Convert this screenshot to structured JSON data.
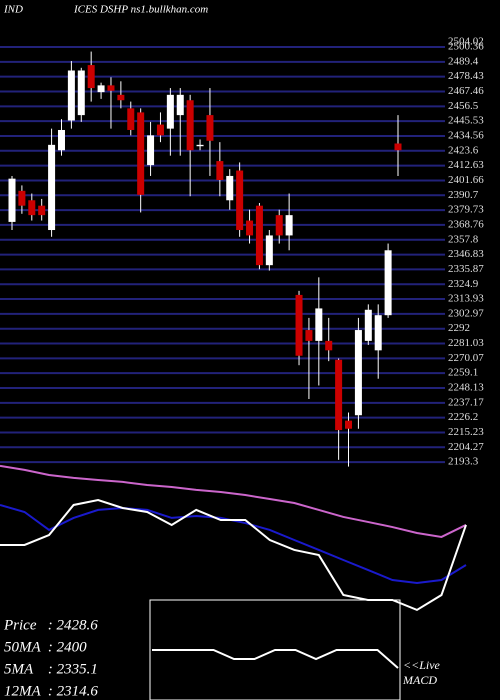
{
  "header": {
    "left": "IND",
    "right": "ICES DSHP ns1.bullkhan.com"
  },
  "chart_data": [
    {
      "type": "candlestick",
      "open": [
        2371,
        2394,
        2387,
        2383,
        2365,
        2424,
        2446,
        2450,
        2487,
        2467,
        2472,
        2465,
        2455,
        2452,
        2413,
        2443,
        2440,
        2450,
        2461,
        2427,
        2450,
        2416,
        2387,
        2409,
        2372,
        2383,
        2339,
        2376,
        2361,
        2317,
        2291,
        2283,
        2283,
        2269,
        2224,
        2228,
        2283,
        2276,
        2302,
        2429
      ],
      "high": [
        2405,
        2398,
        2392,
        2388,
        2440,
        2447,
        2490,
        2485,
        2497,
        2474,
        2478,
        2475,
        2460,
        2455,
        2445,
        2452,
        2470,
        2470,
        2465,
        2432,
        2470,
        2430,
        2410,
        2415,
        2380,
        2385,
        2365,
        2380,
        2392,
        2320,
        2300,
        2330,
        2300,
        2270,
        2230,
        2300,
        2310,
        2310,
        2355,
        2450
      ],
      "low": [
        2365,
        2377,
        2372,
        2372,
        2360,
        2420,
        2440,
        2445,
        2460,
        2462,
        2440,
        2455,
        2435,
        2378,
        2405,
        2430,
        2420,
        2420,
        2390,
        2424,
        2405,
        2390,
        2380,
        2360,
        2355,
        2336,
        2335,
        2355,
        2350,
        2265,
        2240,
        2250,
        2268,
        2195,
        2190,
        2218,
        2280,
        2255,
        2300,
        2405
      ],
      "close": [
        2403,
        2383,
        2376,
        2376,
        2428,
        2439,
        2483,
        2483,
        2470,
        2472,
        2468,
        2461,
        2439,
        2391,
        2435,
        2435,
        2465,
        2465,
        2424,
        2428,
        2431,
        2402,
        2405,
        2365,
        2361,
        2339,
        2361,
        2361,
        2376,
        2272,
        2283,
        2307,
        2276,
        2217,
        2218,
        2291,
        2306,
        2302,
        2350,
        2424
      ],
      "up_color": "#ffffff",
      "down_color": "#cc0000",
      "grid_color": "#22227a",
      "ylim": [
        2186,
        2510
      ],
      "yticks": [
        2193.3,
        2204.27,
        2215.23,
        2226.2,
        2237.17,
        2248.13,
        2259.1,
        2270.07,
        2281.03,
        2292,
        2302.97,
        2313.93,
        2324.9,
        2335.87,
        2346.83,
        2357.8,
        2368.76,
        2379.73,
        2390.7,
        2401.66,
        2412.63,
        2423.6,
        2434.56,
        2445.53,
        2456.5,
        2467.46,
        2478.43,
        2489.4,
        2500.36
      ],
      "max_tick": 2504.02,
      "grid": true
    },
    {
      "type": "line",
      "ylim": [
        0,
        100
      ],
      "series": [
        {
          "color": "#cc66cc",
          "values": [
            96.3,
            93.8,
            90.6,
            88.8,
            87.5,
            86.3,
            84.4,
            83.1,
            81.3,
            80,
            78.1,
            75.6,
            73.1,
            68.8,
            64.4,
            61.3,
            58.1,
            54.4,
            51.9,
            59.4
          ]
        },
        {
          "color": "#1a1acc",
          "values": [
            71.9,
            67.5,
            56.3,
            63.8,
            68.8,
            70,
            68.8,
            63.8,
            65,
            63.8,
            60.6,
            56.3,
            50,
            43.8,
            37.5,
            31.3,
            25,
            23.1,
            25,
            34.4
          ]
        },
        {
          "color": "#ffffff",
          "values": [
            46.9,
            46.9,
            53.1,
            71.9,
            75,
            70,
            67.5,
            59.4,
            68.8,
            62.5,
            62.5,
            50,
            43.8,
            40.6,
            15.6,
            12.5,
            12.5,
            6.3,
            15.6,
            59.4
          ]
        }
      ]
    },
    {
      "type": "line",
      "ylim": [
        -4,
        6
      ],
      "series": [
        {
          "color": "#ffffff",
          "values": [
            1,
            1,
            1,
            1,
            0,
            0,
            1,
            1,
            0,
            1,
            1,
            1,
            -1
          ]
        }
      ]
    }
  ],
  "legend": [
    "Price   : 2428.6",
    "50MA  : 2400",
    "5MA    : 2335.1",
    "12MA  : 2314.6"
  ],
  "live": "<<Live",
  "macd": "MACD"
}
